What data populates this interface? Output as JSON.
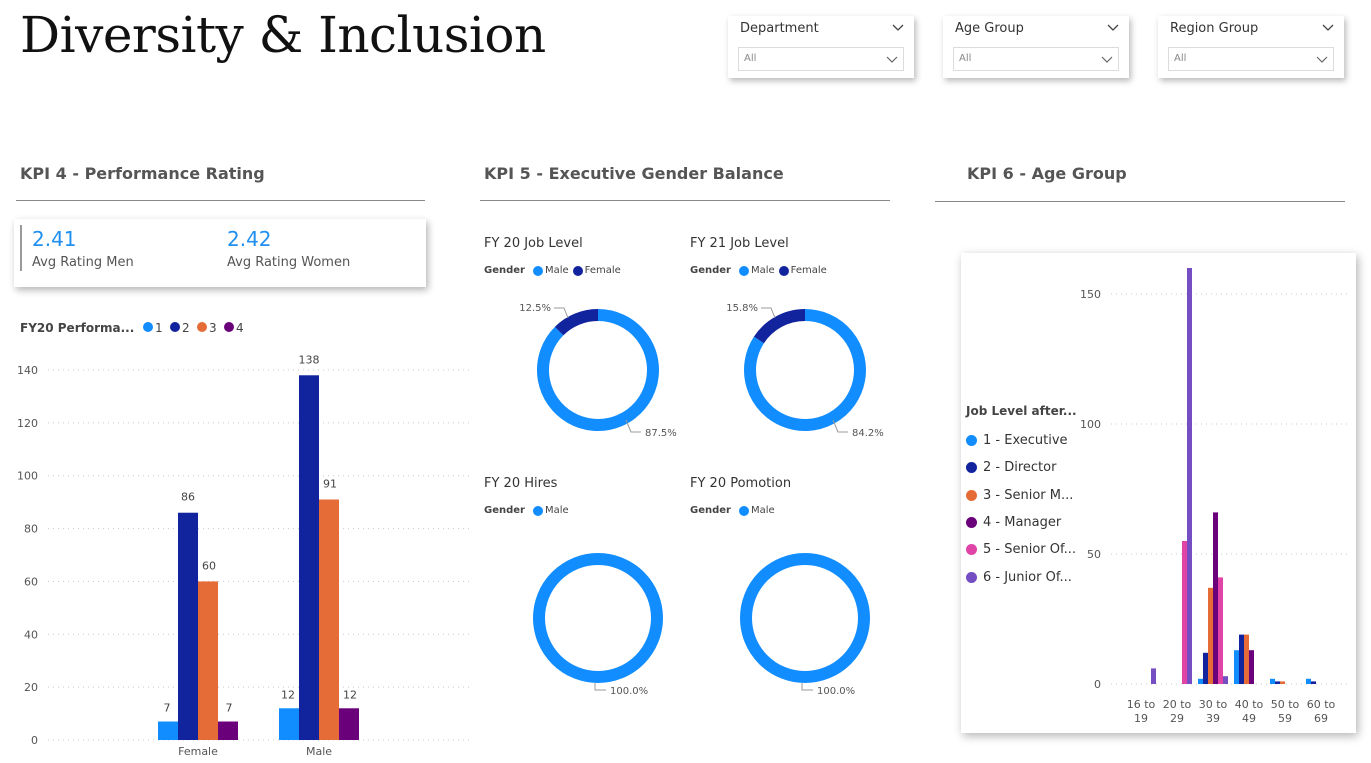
{
  "title": "Diversity & Inclusion",
  "slicers": [
    {
      "label": "Department",
      "value": "All"
    },
    {
      "label": "Age Group",
      "value": "All"
    },
    {
      "label": "Region Group",
      "value": "All"
    }
  ],
  "colors": {
    "c1": "#118DFF",
    "c2": "#12239E",
    "c3": "#E66C37",
    "c4": "#6B007B",
    "c5": "#E044A7",
    "c6": "#744EC2"
  },
  "kpi4": {
    "title": "KPI 4 - Performance Rating",
    "cards": [
      {
        "value": "2.41",
        "label": "Avg Rating Men"
      },
      {
        "value": "2.42",
        "label": "Avg Rating Women"
      }
    ]
  },
  "kpi5": {
    "title": "KPI 5 - Executive Gender Balance",
    "legend_title": "Gender",
    "donuts": [
      {
        "title": "FY 20 Job Level",
        "legend": [
          "Male",
          "Female"
        ],
        "slices": [
          {
            "name": "Male",
            "value": 87.5,
            "label": "87.5%"
          },
          {
            "name": "Female",
            "value": 12.5,
            "label": "12.5%"
          }
        ]
      },
      {
        "title": "FY 21 Job Level",
        "legend": [
          "Male",
          "Female"
        ],
        "slices": [
          {
            "name": "Male",
            "value": 84.2,
            "label": "84.2%"
          },
          {
            "name": "Female",
            "value": 15.8,
            "label": "15.8%"
          }
        ]
      },
      {
        "title": "FY 20 Hires",
        "legend": [
          "Male"
        ],
        "slices": [
          {
            "name": "Male",
            "value": 100,
            "label": "100.0%"
          }
        ]
      },
      {
        "title": "FY 20 Pomotion",
        "legend": [
          "Male"
        ],
        "slices": [
          {
            "name": "Male",
            "value": 100,
            "label": "100.0%"
          }
        ]
      }
    ]
  },
  "kpi6": {
    "title": "KPI 6 - Age Group",
    "legend_title": "Job Level after...",
    "legend": [
      "1 - Executive",
      "2 - Director",
      "3 - Senior M...",
      "4 - Manager",
      "5 - Senior Of...",
      "6 - Junior Of..."
    ]
  },
  "chart_data": [
    {
      "type": "bar",
      "legend_title": "FY20 Performa...",
      "categories": [
        "Female",
        "Male"
      ],
      "series": [
        {
          "name": "1",
          "values": [
            7,
            12
          ]
        },
        {
          "name": "2",
          "values": [
            86,
            138
          ]
        },
        {
          "name": "3",
          "values": [
            60,
            91
          ]
        },
        {
          "name": "4",
          "values": [
            7,
            12
          ]
        }
      ],
      "yticks": [
        0,
        20,
        40,
        60,
        80,
        100,
        120,
        140
      ],
      "ylim": [
        0,
        140
      ],
      "grid": true,
      "legend": "top-left"
    },
    {
      "type": "bar",
      "legend_title": "Job Level after...",
      "categories": [
        "16 to 19",
        "20 to 29",
        "30 to 39",
        "40 to 49",
        "50 to 59",
        "60 to 69"
      ],
      "series": [
        {
          "name": "1 - Executive",
          "values": [
            0,
            0,
            2,
            13,
            2,
            2
          ]
        },
        {
          "name": "2 - Director",
          "values": [
            0,
            0,
            12,
            19,
            1,
            1
          ]
        },
        {
          "name": "3 - Senior M...",
          "values": [
            0,
            0,
            37,
            19,
            1,
            0
          ]
        },
        {
          "name": "4 - Manager",
          "values": [
            0,
            0,
            66,
            13,
            0,
            0
          ]
        },
        {
          "name": "5 - Senior Of...",
          "values": [
            0,
            55,
            41,
            0,
            0,
            0
          ]
        },
        {
          "name": "6 - Junior Of...",
          "values": [
            6,
            160,
            3,
            0,
            0,
            0
          ]
        }
      ],
      "yticks": [
        0,
        50,
        100,
        150
      ],
      "ylim": [
        0,
        160
      ],
      "grid": true,
      "legend": "left"
    }
  ]
}
